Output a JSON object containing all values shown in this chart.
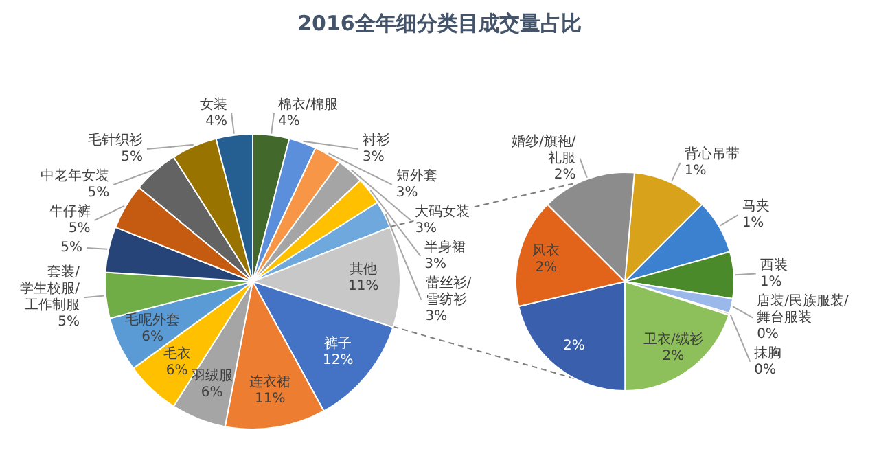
{
  "chart_data": [
    {
      "type": "pie",
      "title": "2016全年细分类目成交量占比",
      "categories": [
        "棉衣/棉服",
        "衬衫",
        "短外套",
        "大码女装",
        "半身裙",
        "蕾丝衫/雪纺衫",
        "其他",
        "裤子",
        "连衣裙",
        "羽绒服",
        "毛衣",
        "毛呢外套",
        "套装/学生校服/工作制服",
        null,
        "牛仔裤",
        "中老年女装",
        "毛针织衫",
        "女装"
      ],
      "values": [
        4,
        3,
        3,
        3,
        3,
        3,
        11,
        12,
        11,
        6,
        6,
        6,
        5,
        5,
        5,
        5,
        5,
        4
      ],
      "value_labels": [
        "4%",
        "3%",
        "3%",
        "3%",
        "3%",
        "3%",
        "11%",
        "12%",
        "11%",
        "6%",
        "6%",
        "6%",
        "5%",
        "5%",
        "5%",
        "5%",
        "5%",
        "4%"
      ],
      "colors": [
        "#43682b",
        "#5b8fdc",
        "#f79646",
        "#a5a5a5",
        "#ffc000",
        "#6fa8dc",
        "#c8c8c8",
        "#4472c4",
        "#ed7d31",
        "#a5a5a5",
        "#ffc000",
        "#5b9bd5",
        "#70ad47",
        "#264478",
        "#c55a11",
        "#636363",
        "#997300",
        "#255e91"
      ]
    },
    {
      "type": "pie",
      "categories": [
        "背心吊带",
        "马夹",
        "西装",
        "唐装/民族服装/舞台服装",
        "抹胸",
        "卫衣/绒衫",
        null,
        "风衣",
        "婚纱/旗袍/礼服"
      ],
      "values": [
        1.22,
        0.89,
        0.76,
        0.24,
        0.03,
        2.2,
        2.35,
        1.77,
        1.53
      ],
      "value_labels": [
        "1%",
        "1%",
        "1%",
        "0%",
        "0%",
        "2%",
        "2%",
        "2%",
        "2%"
      ],
      "colors": [
        "#d9a21b",
        "#3c80d0",
        "#4a8a2a",
        "#9ab8ea",
        "#f4b183",
        "#8dc05a",
        "#3a5fad",
        "#e2641b",
        "#8c8c8c"
      ]
    }
  ]
}
